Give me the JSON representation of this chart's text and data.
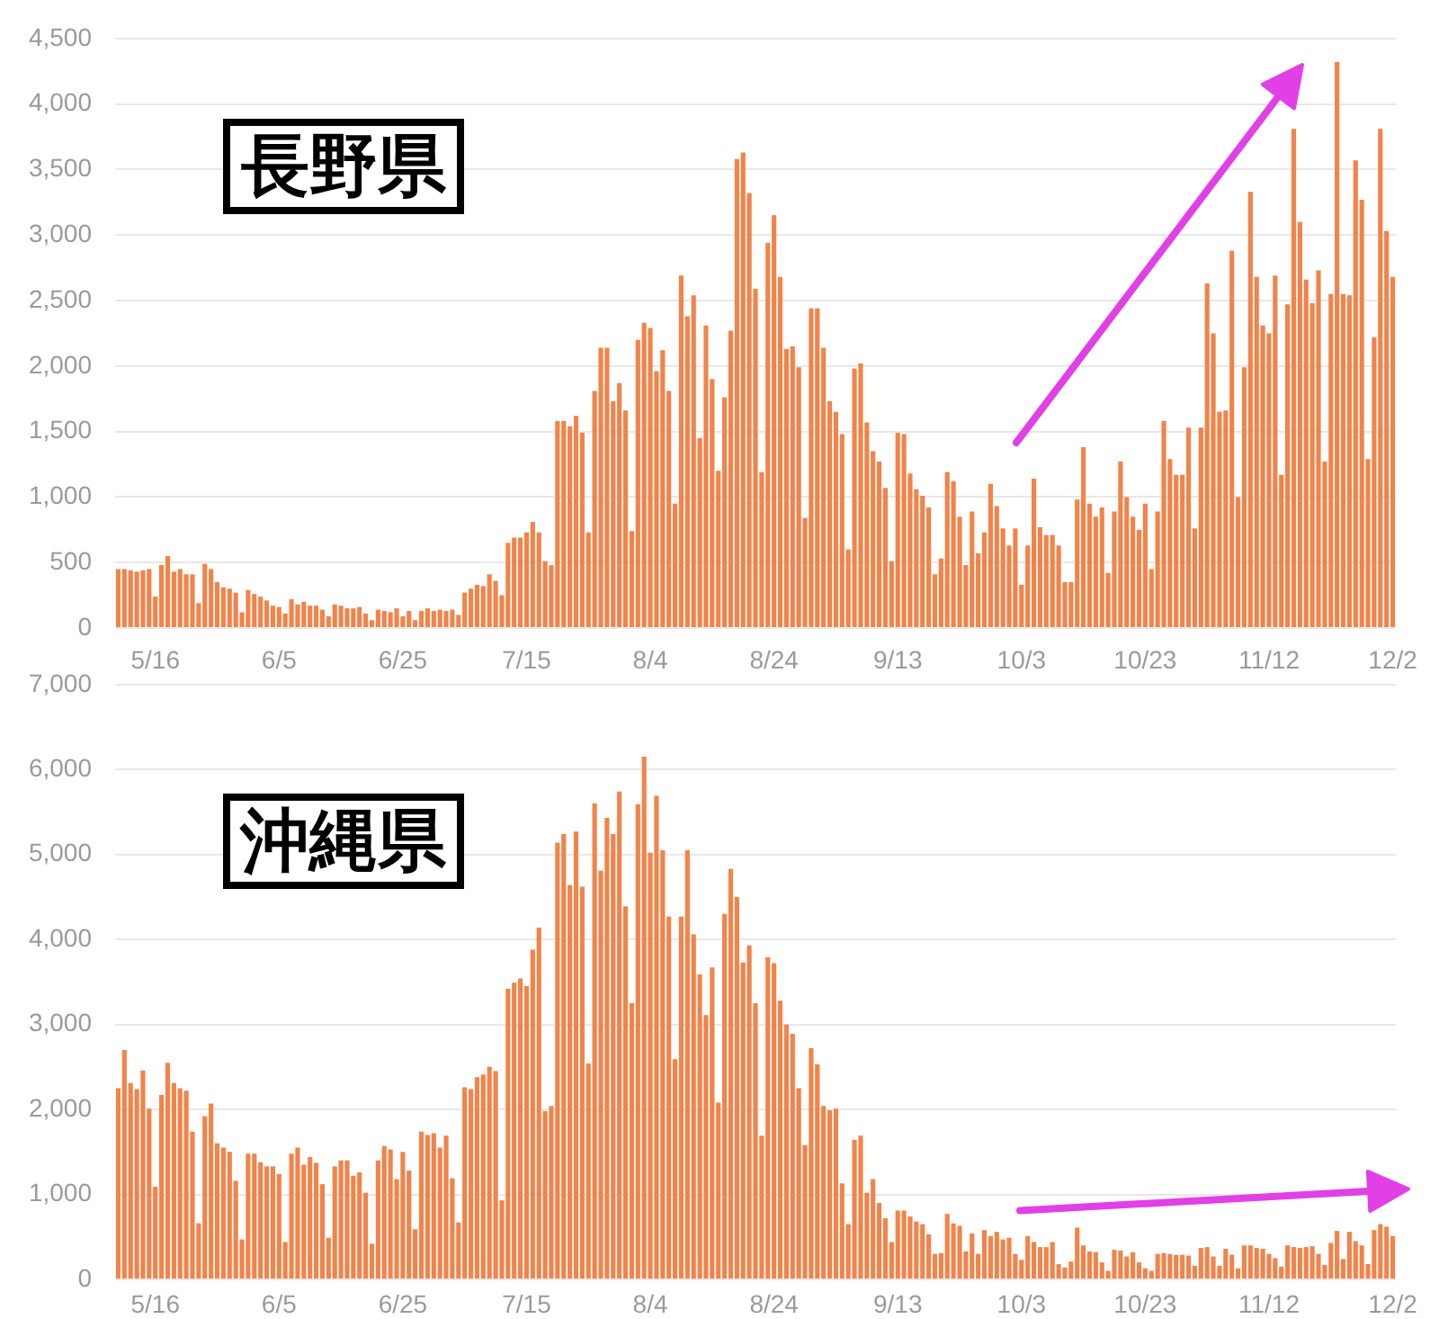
{
  "chart_data": [
    {
      "type": "bar",
      "title": "長野県",
      "categories": [
        null,
        null,
        null,
        null,
        null,
        null,
        "5/16",
        null,
        null,
        null,
        null,
        null,
        null,
        null,
        null,
        null,
        null,
        null,
        null,
        null,
        null,
        null,
        null,
        null,
        null,
        null,
        "6/5",
        null,
        null,
        null,
        null,
        null,
        null,
        null,
        null,
        null,
        null,
        null,
        null,
        null,
        null,
        null,
        null,
        null,
        null,
        null,
        "6/25",
        null,
        null,
        null,
        null,
        null,
        null,
        null,
        null,
        null,
        null,
        null,
        null,
        null,
        null,
        null,
        null,
        null,
        null,
        null,
        "7/15",
        null,
        null,
        null,
        null,
        null,
        null,
        null,
        null,
        null,
        null,
        null,
        null,
        null,
        null,
        null,
        null,
        null,
        null,
        null,
        "8/4",
        null,
        null,
        null,
        null,
        null,
        null,
        null,
        null,
        null,
        null,
        null,
        null,
        null,
        null,
        null,
        null,
        null,
        null,
        null,
        "8/24",
        null,
        null,
        null,
        null,
        null,
        null,
        null,
        null,
        null,
        null,
        null,
        null,
        null,
        null,
        null,
        null,
        null,
        null,
        null,
        "9/13",
        null,
        null,
        null,
        null,
        null,
        null,
        null,
        null,
        null,
        null,
        null,
        null,
        null,
        null,
        null,
        null,
        null,
        null,
        null,
        "10/3",
        null,
        null,
        null,
        null,
        null,
        null,
        null,
        null,
        null,
        null,
        null,
        null,
        null,
        null,
        null,
        null,
        null,
        null,
        null,
        "10/23",
        null,
        null,
        null,
        null,
        null,
        null,
        null,
        null,
        null,
        null,
        null,
        null,
        null,
        null,
        null,
        null,
        null,
        null,
        null,
        "11/12",
        null,
        null,
        null,
        null,
        null,
        null,
        null,
        null,
        null,
        null,
        null,
        null,
        null,
        null,
        null,
        null,
        null,
        null,
        null,
        "12/2"
      ],
      "values": [
        450,
        450,
        440,
        430,
        440,
        450,
        240,
        480,
        550,
        430,
        450,
        410,
        410,
        190,
        490,
        450,
        350,
        310,
        300,
        270,
        120,
        290,
        260,
        240,
        210,
        170,
        160,
        110,
        220,
        180,
        200,
        170,
        170,
        140,
        90,
        180,
        170,
        150,
        150,
        160,
        110,
        60,
        140,
        130,
        120,
        150,
        90,
        130,
        60,
        130,
        150,
        130,
        140,
        130,
        140,
        100,
        270,
        300,
        330,
        320,
        410,
        360,
        250,
        650,
        690,
        690,
        730,
        810,
        730,
        510,
        480,
        1580,
        1580,
        1540,
        1620,
        1490,
        730,
        1810,
        2140,
        2140,
        1730,
        1870,
        1660,
        740,
        2200,
        2330,
        2290,
        1960,
        2120,
        1810,
        950,
        2690,
        2380,
        2540,
        1450,
        2310,
        1900,
        1200,
        1760,
        2270,
        3580,
        3630,
        3320,
        2590,
        1190,
        2940,
        3150,
        2680,
        2130,
        2150,
        1990,
        840,
        2440,
        2440,
        2140,
        1730,
        1650,
        1480,
        600,
        1980,
        2020,
        1570,
        1350,
        1270,
        1070,
        510,
        1490,
        1480,
        1180,
        1060,
        1010,
        920,
        410,
        530,
        1190,
        1120,
        850,
        480,
        890,
        570,
        730,
        1100,
        930,
        760,
        630,
        760,
        330,
        630,
        1140,
        770,
        710,
        710,
        630,
        350,
        350,
        980,
        1380,
        950,
        850,
        920,
        420,
        890,
        1270,
        1000,
        850,
        750,
        950,
        450,
        890,
        1580,
        1290,
        1170,
        1170,
        1530,
        760,
        1530,
        2630,
        2250,
        1650,
        1660,
        2880,
        1000,
        1990,
        3330,
        2680,
        2310,
        2250,
        2690,
        1170,
        2470,
        3810,
        3100,
        2660,
        2480,
        2730,
        1270,
        2550,
        4320,
        2550,
        2540,
        3570,
        3270,
        1290,
        2220,
        3810,
        3030,
        2680
      ],
      "color": "#f28349",
      "ylim": [
        0,
        4500
      ],
      "yticks": [
        {
          "value": 0,
          "label": "0"
        },
        {
          "value": 500,
          "label": "500"
        },
        {
          "value": 1000,
          "label": "1,000"
        },
        {
          "value": 1500,
          "label": "1,500"
        },
        {
          "value": 2000,
          "label": "2,000"
        },
        {
          "value": 2500,
          "label": "2,500"
        },
        {
          "value": 3000,
          "label": "3,000"
        },
        {
          "value": 3500,
          "label": "3,500"
        },
        {
          "value": 4000,
          "label": "4,000"
        },
        {
          "value": 4500,
          "label": "4,500"
        }
      ],
      "grid": "y"
    },
    {
      "type": "bar",
      "title": "沖縄県",
      "categories": [
        null,
        null,
        null,
        null,
        null,
        null,
        "5/16",
        null,
        null,
        null,
        null,
        null,
        null,
        null,
        null,
        null,
        null,
        null,
        null,
        null,
        null,
        null,
        null,
        null,
        null,
        null,
        "6/5",
        null,
        null,
        null,
        null,
        null,
        null,
        null,
        null,
        null,
        null,
        null,
        null,
        null,
        null,
        null,
        null,
        null,
        null,
        null,
        "6/25",
        null,
        null,
        null,
        null,
        null,
        null,
        null,
        null,
        null,
        null,
        null,
        null,
        null,
        null,
        null,
        null,
        null,
        null,
        null,
        "7/15",
        null,
        null,
        null,
        null,
        null,
        null,
        null,
        null,
        null,
        null,
        null,
        null,
        null,
        null,
        null,
        null,
        null,
        null,
        null,
        "8/4",
        null,
        null,
        null,
        null,
        null,
        null,
        null,
        null,
        null,
        null,
        null,
        null,
        null,
        null,
        null,
        null,
        null,
        null,
        null,
        "8/24",
        null,
        null,
        null,
        null,
        null,
        null,
        null,
        null,
        null,
        null,
        null,
        null,
        null,
        null,
        null,
        null,
        null,
        null,
        null,
        "9/13",
        null,
        null,
        null,
        null,
        null,
        null,
        null,
        null,
        null,
        null,
        null,
        null,
        null,
        null,
        null,
        null,
        null,
        null,
        null,
        "10/3",
        null,
        null,
        null,
        null,
        null,
        null,
        null,
        null,
        null,
        null,
        null,
        null,
        null,
        null,
        null,
        null,
        null,
        null,
        null,
        "10/23",
        null,
        null,
        null,
        null,
        null,
        null,
        null,
        null,
        null,
        null,
        null,
        null,
        null,
        null,
        null,
        null,
        null,
        null,
        null,
        "11/12",
        null,
        null,
        null,
        null,
        null,
        null,
        null,
        null,
        null,
        null,
        null,
        null,
        null,
        null,
        null,
        null,
        null,
        null,
        null,
        "12/2"
      ],
      "values": [
        2250,
        2700,
        2310,
        2240,
        2460,
        2010,
        1090,
        2170,
        2550,
        2310,
        2250,
        2220,
        1740,
        660,
        1920,
        2070,
        1600,
        1550,
        1500,
        1160,
        470,
        1480,
        1480,
        1380,
        1330,
        1330,
        1240,
        440,
        1480,
        1550,
        1350,
        1440,
        1370,
        1120,
        490,
        1330,
        1400,
        1400,
        1220,
        1260,
        1020,
        420,
        1400,
        1570,
        1530,
        1180,
        1500,
        1280,
        590,
        1740,
        1700,
        1720,
        1550,
        1690,
        1190,
        670,
        2260,
        2240,
        2380,
        2410,
        2500,
        2450,
        930,
        3420,
        3490,
        3540,
        3450,
        3880,
        4140,
        1980,
        2040,
        5140,
        5240,
        4640,
        5270,
        4620,
        2540,
        5600,
        4810,
        5430,
        5240,
        5740,
        4390,
        3250,
        5590,
        6150,
        5020,
        5690,
        5050,
        4270,
        2590,
        4270,
        5050,
        4060,
        3590,
        3110,
        3670,
        2080,
        4300,
        4830,
        4500,
        3730,
        3930,
        3250,
        1690,
        3790,
        3720,
        3280,
        3000,
        2890,
        2250,
        1580,
        2720,
        2530,
        2040,
        1990,
        2010,
        1130,
        650,
        1640,
        1690,
        1020,
        1180,
        900,
        720,
        440,
        810,
        810,
        740,
        680,
        650,
        530,
        300,
        310,
        770,
        660,
        630,
        330,
        540,
        300,
        580,
        510,
        560,
        470,
        490,
        300,
        230,
        510,
        440,
        380,
        380,
        440,
        180,
        140,
        210,
        610,
        400,
        330,
        320,
        200,
        100,
        350,
        340,
        270,
        320,
        200,
        130,
        100,
        300,
        310,
        300,
        290,
        290,
        280,
        160,
        370,
        380,
        270,
        160,
        360,
        290,
        130,
        400,
        400,
        370,
        360,
        300,
        250,
        150,
        400,
        380,
        370,
        380,
        390,
        300,
        170,
        430,
        570,
        240,
        560,
        450,
        400,
        180,
        580,
        650,
        620,
        510
      ],
      "color": "#f28349",
      "ylim": [
        0,
        7000
      ],
      "yticks": [
        {
          "value": 0,
          "label": "0"
        },
        {
          "value": 1000,
          "label": "1,000"
        },
        {
          "value": 2000,
          "label": "2,000"
        },
        {
          "value": 3000,
          "label": "3,000"
        },
        {
          "value": 4000,
          "label": "4,000"
        },
        {
          "value": 5000,
          "label": "5,000"
        },
        {
          "value": 6000,
          "label": "6,000"
        },
        {
          "value": 7000,
          "label": "7,000"
        }
      ],
      "grid": "y"
    }
  ]
}
